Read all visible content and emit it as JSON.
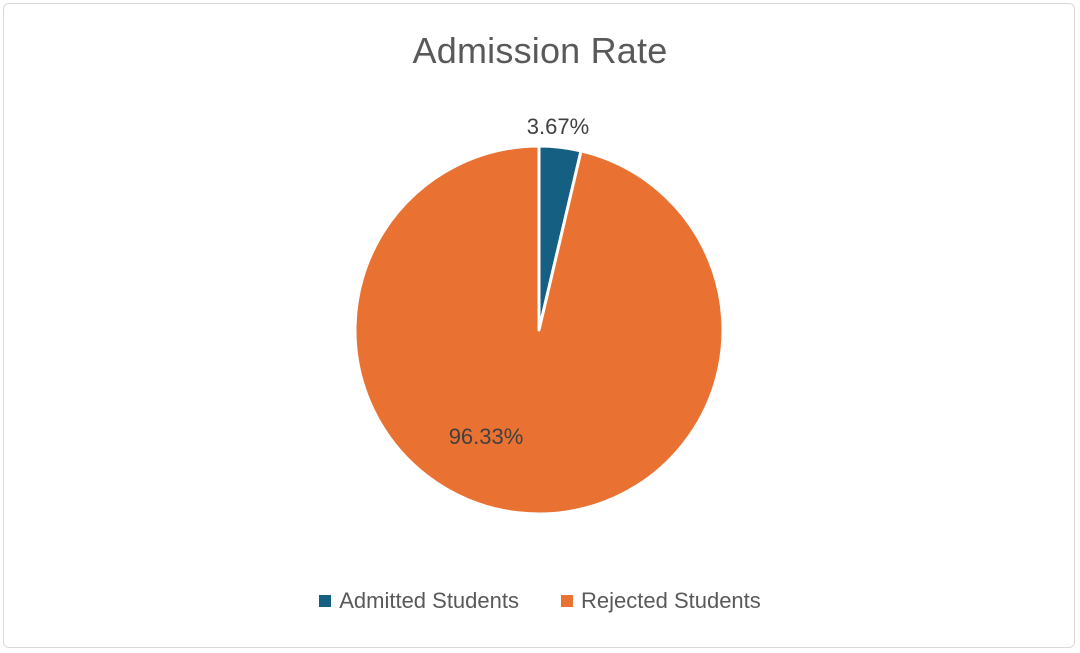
{
  "chart_data": {
    "type": "pie",
    "title": "Admission Rate",
    "start_angle_deg": 0,
    "legend_position": "bottom",
    "slices": [
      {
        "name": "Admitted Students",
        "value": 3.67,
        "label": "3.67%",
        "color": "#156082"
      },
      {
        "name": "Rejected Students",
        "value": 96.33,
        "label": "96.33%",
        "color": "#E97132"
      }
    ]
  }
}
